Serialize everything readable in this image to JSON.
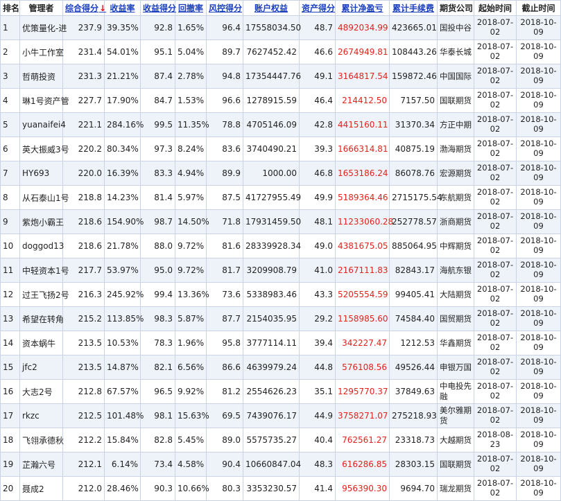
{
  "headers": {
    "rank": "排名",
    "manager": "管理者",
    "score": "综合得分",
    "sort_arrow": "↓",
    "return_rate": "收益率",
    "return_score": "收益得分",
    "drawdown": "回撤率",
    "risk_score": "风控得分",
    "equity": "账户权益",
    "asset_score": "资产得分",
    "net_pnl": "累计净盈亏",
    "fees": "累计手续费",
    "company": "期货公司",
    "start": "起始时间",
    "end": "截止时间"
  },
  "rows": [
    {
      "rank": "1",
      "manager": "优策量化-进",
      "score": "237.9",
      "return_rate": "39.35%",
      "return_score": "92.8",
      "drawdown": "1.65%",
      "risk_score": "96.4",
      "equity": "17558034.50",
      "asset_score": "48.7",
      "net_pnl": "4892034.99",
      "fees": "423665.01",
      "company": "国投中谷",
      "start": "2018-07-02",
      "end": "2018-10-09"
    },
    {
      "rank": "2",
      "manager": "小牛工作室",
      "score": "231.4",
      "return_rate": "54.01%",
      "return_score": "95.1",
      "drawdown": "5.04%",
      "risk_score": "89.7",
      "equity": "7627452.42",
      "asset_score": "46.6",
      "net_pnl": "2674949.81",
      "fees": "108443.26",
      "company": "华泰长城",
      "start": "2018-07-02",
      "end": "2018-10-09"
    },
    {
      "rank": "3",
      "manager": "哲萌投资",
      "score": "231.3",
      "return_rate": "21.21%",
      "return_score": "87.4",
      "drawdown": "2.78%",
      "risk_score": "94.8",
      "equity": "17354447.76",
      "asset_score": "49.1",
      "net_pnl": "3164817.54",
      "fees": "159872.46",
      "company": "中国国际",
      "start": "2018-07-02",
      "end": "2018-10-09"
    },
    {
      "rank": "4",
      "manager": "琳1号资产管",
      "score": "227.7",
      "return_rate": "17.90%",
      "return_score": "84.7",
      "drawdown": "1.53%",
      "risk_score": "96.6",
      "equity": "1278915.59",
      "asset_score": "46.4",
      "net_pnl": "214412.50",
      "fees": "7157.50",
      "company": "国联期货",
      "start": "2018-07-02",
      "end": "2018-10-09"
    },
    {
      "rank": "5",
      "manager": "yuanaifei4",
      "score": "221.1",
      "return_rate": "284.16%",
      "return_score": "99.5",
      "drawdown": "11.35%",
      "risk_score": "78.8",
      "equity": "4705146.09",
      "asset_score": "42.8",
      "net_pnl": "4415160.11",
      "fees": "31370.34",
      "company": "方正中期",
      "start": "2018-07-02",
      "end": "2018-10-09"
    },
    {
      "rank": "6",
      "manager": "英大振威3号",
      "score": "220.2",
      "return_rate": "80.34%",
      "return_score": "97.3",
      "drawdown": "8.24%",
      "risk_score": "83.6",
      "equity": "3740490.21",
      "asset_score": "39.3",
      "net_pnl": "1666314.81",
      "fees": "40875.19",
      "company": "渤海期货",
      "start": "2018-07-02",
      "end": "2018-10-09"
    },
    {
      "rank": "7",
      "manager": "HY693",
      "score": "220.0",
      "return_rate": "16.39%",
      "return_score": "83.3",
      "drawdown": "4.94%",
      "risk_score": "89.9",
      "equity": "1000.00",
      "asset_score": "46.8",
      "net_pnl": "1653186.24",
      "fees": "86078.76",
      "company": "宏源期货",
      "start": "2018-07-02",
      "end": "2018-10-09"
    },
    {
      "rank": "8",
      "manager": "从石泰山1号",
      "score": "218.8",
      "return_rate": "14.23%",
      "return_score": "81.4",
      "drawdown": "5.97%",
      "risk_score": "87.5",
      "equity": "41727955.49",
      "asset_score": "49.9",
      "net_pnl": "5189364.46",
      "fees": "2715175.54",
      "company": "东航期货",
      "start": "2018-07-02",
      "end": "2018-10-09"
    },
    {
      "rank": "9",
      "manager": "紫炮小霸王",
      "score": "218.6",
      "return_rate": "154.90%",
      "return_score": "98.7",
      "drawdown": "14.50%",
      "risk_score": "71.8",
      "equity": "17931459.50",
      "asset_score": "48.1",
      "net_pnl": "11233060.28",
      "fees": "252778.57",
      "company": "浙商期货",
      "start": "2018-07-02",
      "end": "2018-10-09"
    },
    {
      "rank": "10",
      "manager": "doggod13",
      "score": "218.6",
      "return_rate": "21.78%",
      "return_score": "88.0",
      "drawdown": "9.72%",
      "risk_score": "81.6",
      "equity": "28339928.34",
      "asset_score": "49.0",
      "net_pnl": "4381675.05",
      "fees": "885064.95",
      "company": "中辉期货",
      "start": "2018-07-02",
      "end": "2018-10-09"
    },
    {
      "rank": "11",
      "manager": "中轻资本1号",
      "score": "217.7",
      "return_rate": "53.97%",
      "return_score": "95.0",
      "drawdown": "9.72%",
      "risk_score": "81.7",
      "equity": "3209908.79",
      "asset_score": "41.0",
      "net_pnl": "2167111.83",
      "fees": "82843.17",
      "company": "海航东银",
      "start": "2018-07-02",
      "end": "2018-10-09"
    },
    {
      "rank": "12",
      "manager": "过王飞扬2号",
      "score": "216.3",
      "return_rate": "245.92%",
      "return_score": "99.4",
      "drawdown": "13.36%",
      "risk_score": "73.6",
      "equity": "5338983.46",
      "asset_score": "43.3",
      "net_pnl": "5205554.59",
      "fees": "99405.41",
      "company": "大陆期货",
      "start": "2018-07-02",
      "end": "2018-10-09"
    },
    {
      "rank": "13",
      "manager": "希望在转角",
      "score": "215.2",
      "return_rate": "113.85%",
      "return_score": "98.3",
      "drawdown": "5.87%",
      "risk_score": "87.7",
      "equity": "2154035.95",
      "asset_score": "29.2",
      "net_pnl": "1158985.60",
      "fees": "74584.40",
      "company": "国贸期货",
      "start": "2018-07-02",
      "end": "2018-10-09"
    },
    {
      "rank": "14",
      "manager": "资本蜗牛",
      "score": "213.5",
      "return_rate": "10.53%",
      "return_score": "78.3",
      "drawdown": "1.96%",
      "risk_score": "95.8",
      "equity": "3777114.11",
      "asset_score": "39.4",
      "net_pnl": "342227.47",
      "fees": "1212.53",
      "company": "华鑫期货",
      "start": "2018-07-02",
      "end": "2018-10-09"
    },
    {
      "rank": "15",
      "manager": "jfc2",
      "score": "213.5",
      "return_rate": "14.87%",
      "return_score": "82.1",
      "drawdown": "6.56%",
      "risk_score": "86.6",
      "equity": "4639979.24",
      "asset_score": "44.8",
      "net_pnl": "576108.56",
      "fees": "49526.44",
      "company": "申银万国",
      "start": "2018-07-02",
      "end": "2018-10-09"
    },
    {
      "rank": "16",
      "manager": "大志2号",
      "score": "212.8",
      "return_rate": "67.57%",
      "return_score": "96.5",
      "drawdown": "9.92%",
      "risk_score": "81.2",
      "equity": "2554626.23",
      "asset_score": "35.1",
      "net_pnl": "1295770.37",
      "fees": "37849.63",
      "company": "中电投先融",
      "start": "2018-07-02",
      "end": "2018-10-09"
    },
    {
      "rank": "17",
      "manager": "rkzc",
      "score": "212.5",
      "return_rate": "101.48%",
      "return_score": "98.1",
      "drawdown": "15.63%",
      "risk_score": "69.5",
      "equity": "7439076.17",
      "asset_score": "44.9",
      "net_pnl": "3758271.07",
      "fees": "275218.93",
      "company": "美尔雅期货",
      "start": "2018-07-02",
      "end": "2018-10-09"
    },
    {
      "rank": "18",
      "manager": "飞翎承德秋",
      "score": "212.2",
      "return_rate": "15.84%",
      "return_score": "82.8",
      "drawdown": "5.45%",
      "risk_score": "89.0",
      "equity": "5575735.27",
      "asset_score": "40.4",
      "net_pnl": "762561.27",
      "fees": "23318.73",
      "company": "大越期货",
      "start": "2018-08-23",
      "end": "2018-10-09"
    },
    {
      "rank": "19",
      "manager": "芷瀚六号",
      "score": "212.1",
      "return_rate": "6.14%",
      "return_score": "73.4",
      "drawdown": "4.58%",
      "risk_score": "90.4",
      "equity": "10660847.04",
      "asset_score": "48.3",
      "net_pnl": "616286.85",
      "fees": "28303.15",
      "company": "国联期货",
      "start": "2018-07-02",
      "end": "2018-10-09"
    },
    {
      "rank": "20",
      "manager": "聂成2",
      "score": "212.0",
      "return_rate": "28.46%",
      "return_score": "90.3",
      "drawdown": "10.66%",
      "risk_score": "80.3",
      "equity": "3353230.57",
      "asset_score": "41.4",
      "net_pnl": "956390.30",
      "fees": "9694.70",
      "company": "瑞龙期货",
      "start": "2018-07-02",
      "end": "2018-10-09"
    }
  ],
  "colors": {
    "header_link": "#1a3fbf",
    "sort_arrow": "#dd1111",
    "pnl_text": "#e0221b",
    "row_stripe": "#eef3fa",
    "border": "#c9d3e4"
  }
}
